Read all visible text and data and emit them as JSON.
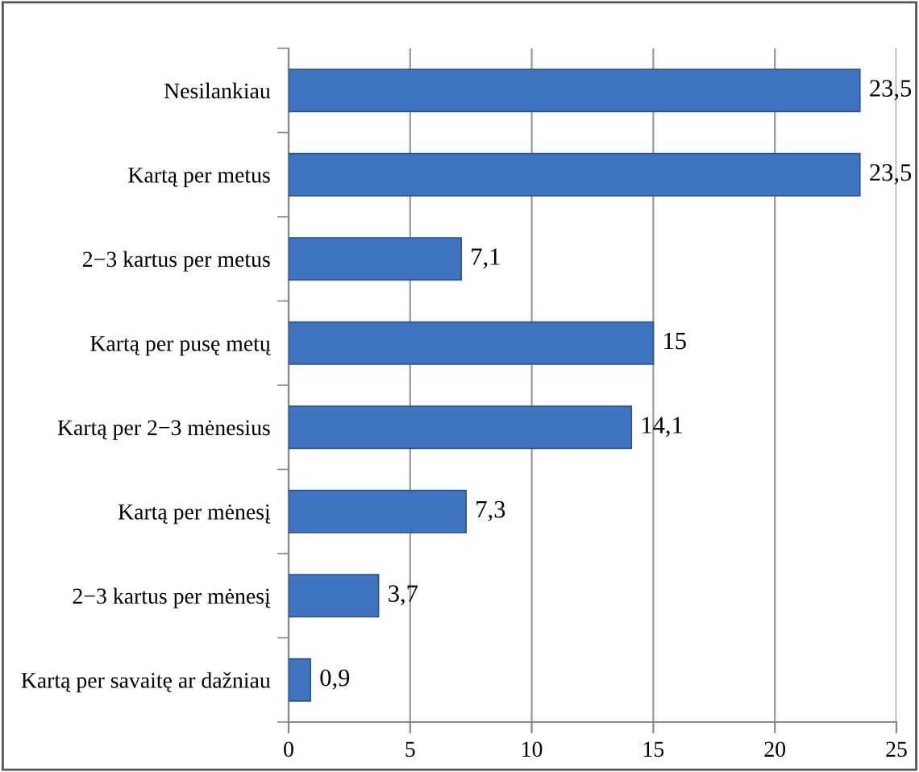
{
  "chart_data": {
    "type": "bar",
    "orientation": "horizontal",
    "categories": [
      "Nesilankiau",
      "Kartą per metus",
      "2−3 kartus per metus",
      "Kartą per pusę metų",
      "Kartą per 2−3 mėnesius",
      "Kartą per mėnesį",
      "2−3 kartus per mėnesį",
      "Kartą per savaitę ar dažniau"
    ],
    "values": [
      23.5,
      23.5,
      7.1,
      15,
      14.1,
      7.3,
      3.7,
      0.9
    ],
    "value_labels": [
      "23,5",
      "23,5",
      "7,1",
      "15",
      "14,1",
      "7,3",
      "3,7",
      "0,9"
    ],
    "color": "#3f74c0",
    "xlim": [
      0,
      25
    ],
    "xticks": [
      0,
      5,
      10,
      15,
      20,
      25
    ],
    "grid": "x"
  }
}
